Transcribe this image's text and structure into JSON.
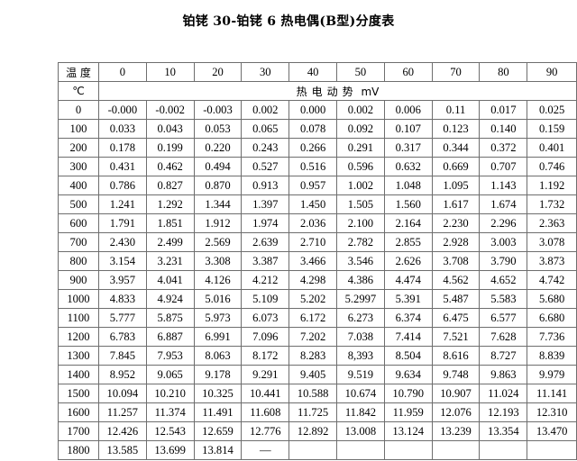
{
  "title": "铂铑 30-铂铑 6 热电偶(B型)分度表",
  "header": {
    "temp_label": "温 度",
    "temp_unit": "℃",
    "emf_label": "热电动势mV",
    "columns": [
      "0",
      "10",
      "20",
      "30",
      "40",
      "50",
      "60",
      "70",
      "80",
      "90"
    ]
  },
  "rows": [
    {
      "t": "0",
      "v": [
        "-0.000",
        "-0.002",
        "-0.003",
        "0.002",
        "0.000",
        "0.002",
        "0.006",
        "0.11",
        "0.017",
        "0.025"
      ]
    },
    {
      "t": "100",
      "v": [
        "0.033",
        "0.043",
        "0.053",
        "0.065",
        "0.078",
        "0.092",
        "0.107",
        "0.123",
        "0.140",
        "0.159"
      ]
    },
    {
      "t": "200",
      "v": [
        "0.178",
        "0.199",
        "0.220",
        "0.243",
        "0.266",
        "0.291",
        "0.317",
        "0.344",
        "0.372",
        "0.401"
      ]
    },
    {
      "t": "300",
      "v": [
        "0.431",
        "0.462",
        "0.494",
        "0.527",
        "0.516",
        "0.596",
        "0.632",
        "0.669",
        "0.707",
        "0.746"
      ]
    },
    {
      "t": "400",
      "v": [
        "0.786",
        "0.827",
        "0.870",
        "0.913",
        "0.957",
        "1.002",
        "1.048",
        "1.095",
        "1.143",
        "1.192"
      ]
    },
    {
      "t": "500",
      "v": [
        "1.241",
        "1.292",
        "1.344",
        "1.397",
        "1.450",
        "1.505",
        "1.560",
        "1.617",
        "1.674",
        "1.732"
      ]
    },
    {
      "t": "600",
      "v": [
        "1.791",
        "1.851",
        "1.912",
        "1.974",
        "2.036",
        "2.100",
        "2.164",
        "2.230",
        "2.296",
        "2.363"
      ]
    },
    {
      "t": "700",
      "v": [
        "2.430",
        "2.499",
        "2.569",
        "2.639",
        "2.710",
        "2.782",
        "2.855",
        "2.928",
        "3.003",
        "3.078"
      ]
    },
    {
      "t": "800",
      "v": [
        "3.154",
        "3.231",
        "3.308",
        "3.387",
        "3.466",
        "3.546",
        "2.626",
        "3.708",
        "3.790",
        "3.873"
      ]
    },
    {
      "t": "900",
      "v": [
        "3.957",
        "4.041",
        "4.126",
        "4.212",
        "4.298",
        "4.386",
        "4.474",
        "4.562",
        "4.652",
        "4.742"
      ]
    },
    {
      "t": "1000",
      "v": [
        "4.833",
        "4.924",
        "5.016",
        "5.109",
        "5.202",
        "5.2997",
        "5.391",
        "5.487",
        "5.583",
        "5.680"
      ]
    },
    {
      "t": "1100",
      "v": [
        "5.777",
        "5.875",
        "5.973",
        "6.073",
        "6.172",
        "6.273",
        "6.374",
        "6.475",
        "6.577",
        "6.680"
      ]
    },
    {
      "t": "1200",
      "v": [
        "6.783",
        "6.887",
        "6.991",
        "7.096",
        "7.202",
        "7.038",
        "7.414",
        "7.521",
        "7.628",
        "7.736"
      ]
    },
    {
      "t": "1300",
      "v": [
        "7.845",
        "7.953",
        "8.063",
        "8.172",
        "8.283",
        "8,393",
        "8.504",
        "8.616",
        "8.727",
        "8.839"
      ]
    },
    {
      "t": "1400",
      "v": [
        "8.952",
        "9.065",
        "9.178",
        "9.291",
        "9.405",
        "9.519",
        "9.634",
        "9.748",
        "9.863",
        "9.979"
      ]
    },
    {
      "t": "1500",
      "v": [
        "10.094",
        "10.210",
        "10.325",
        "10.441",
        "10.588",
        "10.674",
        "10.790",
        "10.907",
        "11.024",
        "11.141"
      ]
    },
    {
      "t": "1600",
      "v": [
        "11.257",
        "11.374",
        "11.491",
        "11.608",
        "11.725",
        "11.842",
        "11.959",
        "12.076",
        "12.193",
        "12.310"
      ]
    },
    {
      "t": "1700",
      "v": [
        "12.426",
        "12.543",
        "12.659",
        "12.776",
        "12.892",
        "13.008",
        "13.124",
        "13.239",
        "13.354",
        "13.470"
      ]
    },
    {
      "t": "1800",
      "v": [
        "13.585",
        "13.699",
        "13.814",
        "—",
        "",
        "",
        "",
        "",
        "",
        ""
      ]
    }
  ]
}
